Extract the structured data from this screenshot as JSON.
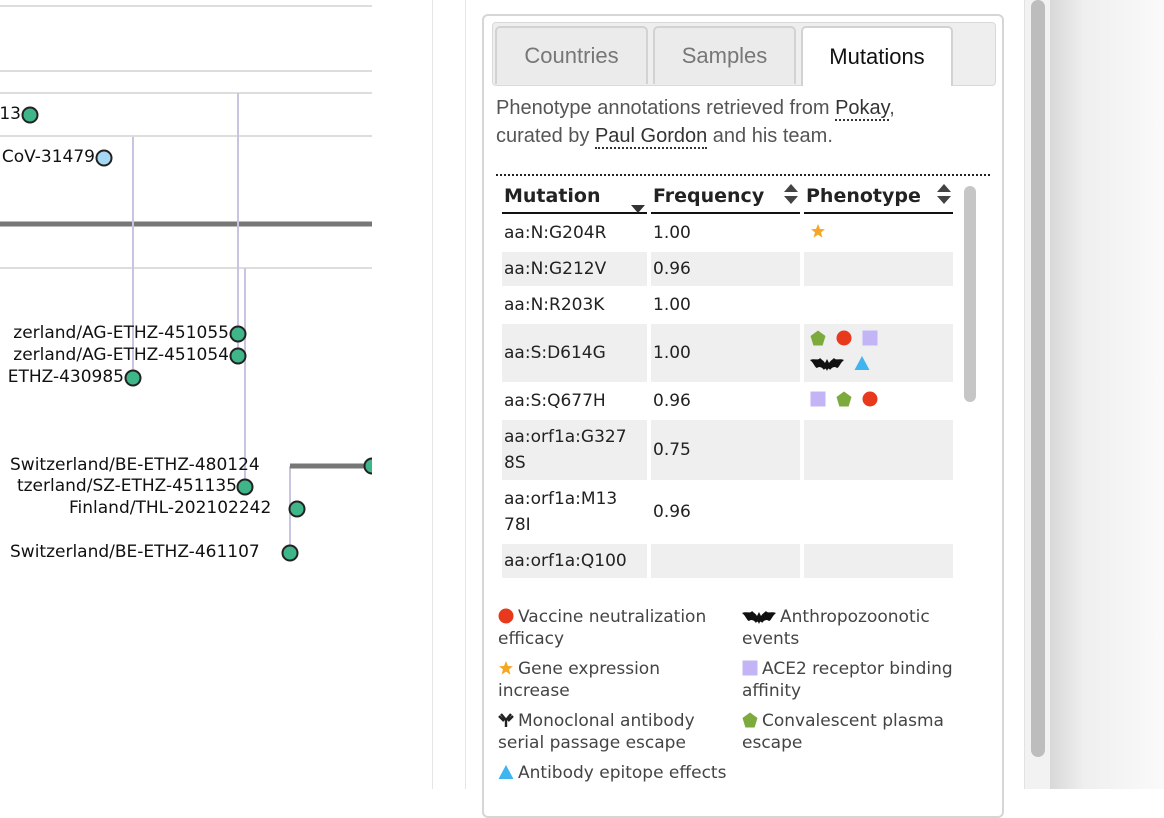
{
  "tree": {
    "labels": [
      {
        "text": "13",
        "key": "l1"
      },
      {
        "text": "CoV-31479",
        "key": "l2"
      },
      {
        "text": "zerland/AG-ETHZ-451055",
        "key": "l3"
      },
      {
        "text": "zerland/AG-ETHZ-451054",
        "key": "l4"
      },
      {
        "text": "ETHZ-430985",
        "key": "l5"
      },
      {
        "text": "Switzerland/BE-ETHZ-480124",
        "key": "l6"
      },
      {
        "text": "tzerland/SZ-ETHZ-451135",
        "key": "l7"
      },
      {
        "text": "Finland/THL-202102242",
        "key": "l8"
      },
      {
        "text": "Switzerland/BE-ETHZ-461107",
        "key": "l9"
      }
    ],
    "node_color": "#3fb58a",
    "node_color_light": "#a6d7f5"
  },
  "tabs": [
    {
      "label": "Countries",
      "active": false
    },
    {
      "label": "Samples",
      "active": false
    },
    {
      "label": "Mutations",
      "active": true
    }
  ],
  "description": {
    "line1_prefix": "Phenotype annotations retrieved from ",
    "link1": "Pokay",
    "line1_suffix": ",",
    "line2_prefix": "curated by ",
    "link2": "Paul Gordon",
    "line2_suffix": " and his team."
  },
  "table": {
    "headers": [
      "Mutation",
      "Frequency",
      "Phenotype"
    ],
    "rows": [
      {
        "mutation": "aa:N:G204R",
        "frequency": "1.00",
        "phenotypes": [
          "star"
        ]
      },
      {
        "mutation": "aa:N:G212V",
        "frequency": "0.96",
        "phenotypes": []
      },
      {
        "mutation": "aa:N:R203K",
        "frequency": "1.00",
        "phenotypes": []
      },
      {
        "mutation": "aa:S:D614G",
        "frequency": "1.00",
        "phenotypes": [
          "pentagon",
          "circle",
          "square",
          "bat",
          "triangle"
        ]
      },
      {
        "mutation": "aa:S:Q677H",
        "frequency": "0.96",
        "phenotypes": [
          "square",
          "pentagon",
          "circle"
        ]
      },
      {
        "mutation": "aa:orf1a:G3278S",
        "mutation_display": "aa:orf1a:G327\n8S",
        "frequency": "0.75",
        "phenotypes": []
      },
      {
        "mutation": "aa:orf1a:M1378I",
        "mutation_display": "aa:orf1a:M13\n78I",
        "frequency": "0.96",
        "phenotypes": []
      },
      {
        "mutation": "aa:orf1a:Q100",
        "mutation_display": "aa:orf1a:Q100",
        "frequency": "",
        "phenotypes": []
      }
    ]
  },
  "legend": [
    {
      "icon": "circle",
      "label": "Vaccine neutralization efficacy"
    },
    {
      "icon": "bat",
      "label": "Anthropozoonotic events"
    },
    {
      "icon": "star",
      "label": "Gene expression increase"
    },
    {
      "icon": "square",
      "label": "ACE2 receptor binding affinity"
    },
    {
      "icon": "antibody",
      "label": "Monoclonal antibody serial passage escape"
    },
    {
      "icon": "pentagon",
      "label": "Convalescent plasma escape"
    },
    {
      "icon": "triangle",
      "label": "Antibody epitope effects"
    }
  ],
  "colors": {
    "circle": "#e8391d",
    "star": "#f5a623",
    "square": "#c3b5f5",
    "pentagon": "#7daa3c",
    "triangle": "#3fb4ef",
    "bat": "#111111",
    "antibody": "#222222"
  }
}
